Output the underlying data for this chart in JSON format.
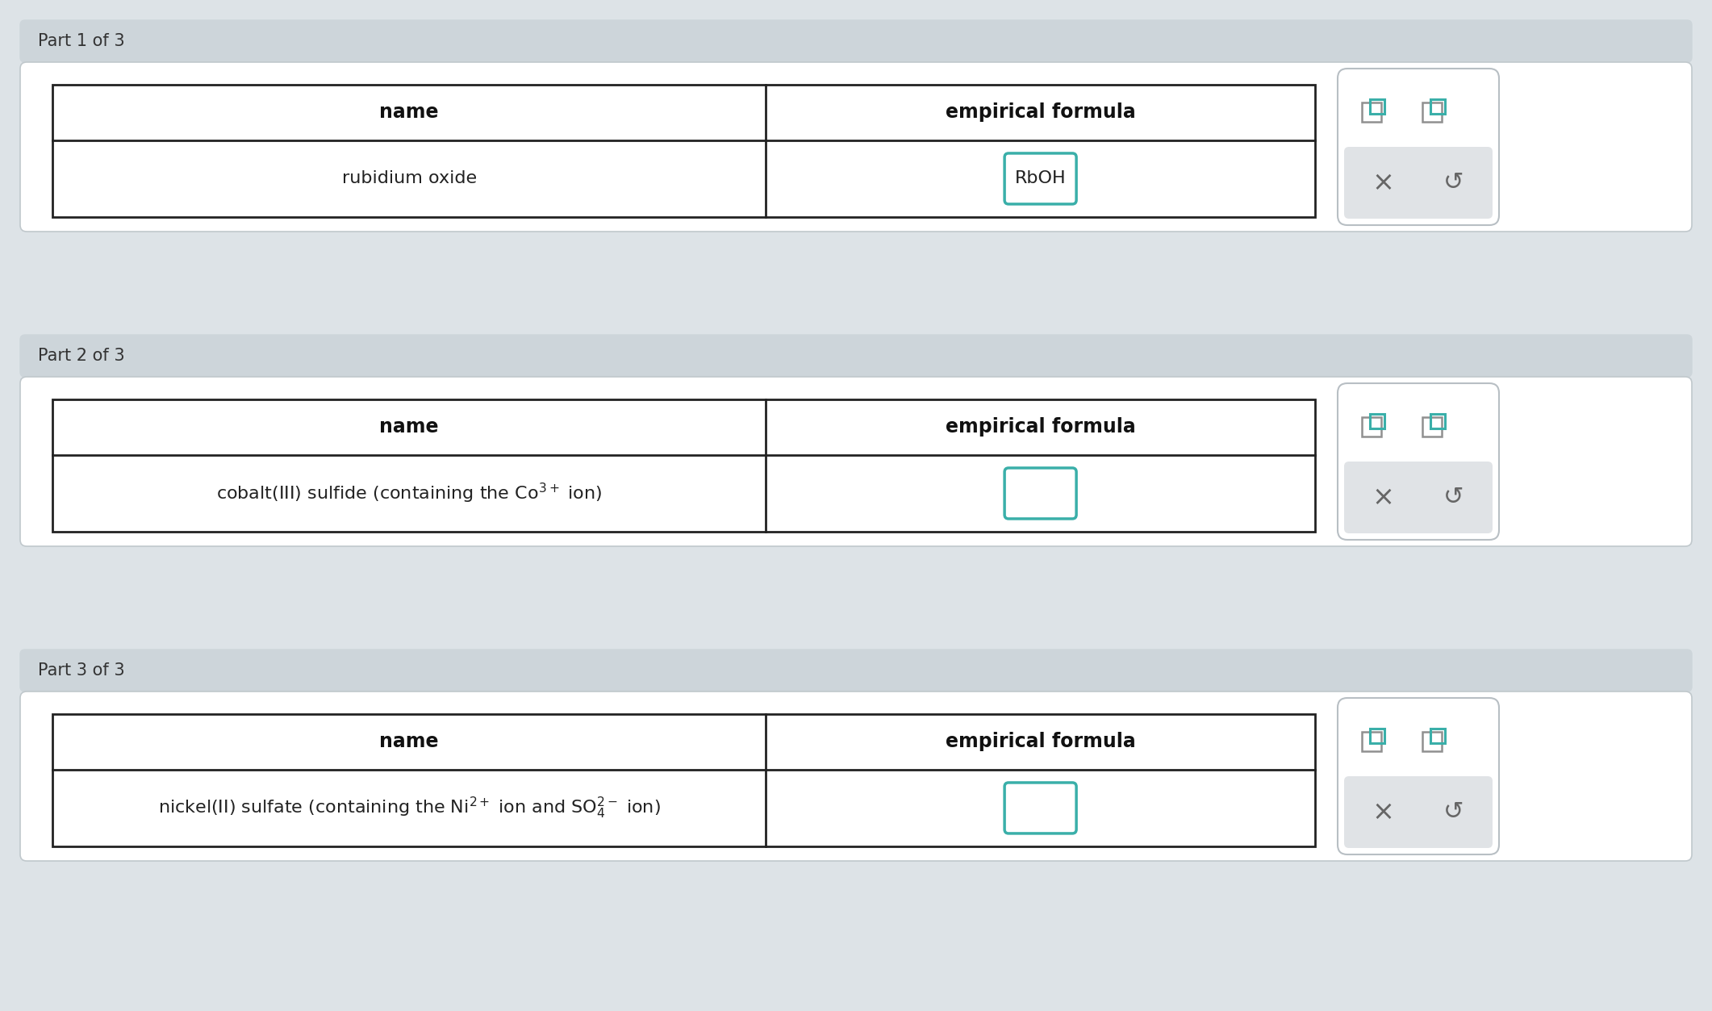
{
  "bg_color": "#dde3e7",
  "panel_bg": "#ffffff",
  "header_bg": "#cdd5da",
  "table_border": "#222222",
  "teal_color": "#3aafa9",
  "light_gray": "#e0e3e6",
  "widget_border": "#b8bfc4",
  "parts": [
    {
      "label": "Part 1 of 3",
      "name_latex": "rubidium oxide",
      "formula_text": "RbOH",
      "answered": true
    },
    {
      "label": "Part 2 of 3",
      "name_latex": "cobalt(III) sulfide (containing the Co$^{3+}$ ion)",
      "formula_text": "",
      "answered": false
    },
    {
      "label": "Part 3 of 3",
      "name_latex": "nickel(II) sulfate (containing the Ni$^{2+}$ ion and SO$_4^{2-}$ ion)",
      "formula_text": "",
      "answered": false
    }
  ]
}
